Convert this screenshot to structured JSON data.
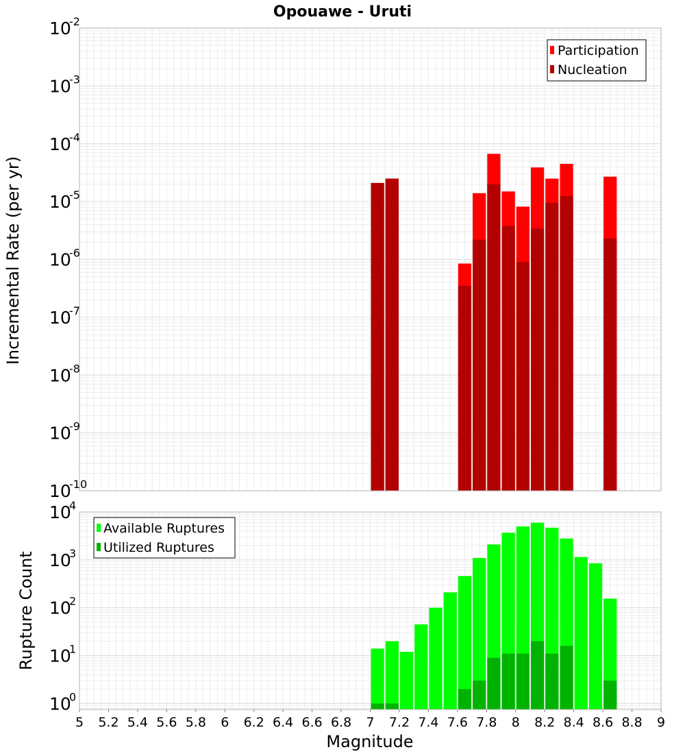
{
  "chart_data": [
    {
      "type": "bar",
      "title": "Opouawe - Uruti",
      "xlabel": "Magnitude",
      "ylabel": "Incremental Rate (per yr)",
      "yscale": "log",
      "ylim": [
        1e-10,
        0.01
      ],
      "xlim": [
        5,
        9
      ],
      "bin_width": 0.1,
      "y_ticks": [
        {
          "base": "10",
          "exp": "-10"
        },
        {
          "base": "10",
          "exp": "-9"
        },
        {
          "base": "10",
          "exp": "-8"
        },
        {
          "base": "10",
          "exp": "-7"
        },
        {
          "base": "10",
          "exp": "-6"
        },
        {
          "base": "10",
          "exp": "-5"
        },
        {
          "base": "10",
          "exp": "-4"
        },
        {
          "base": "10",
          "exp": "-3"
        },
        {
          "base": "10",
          "exp": "-2"
        }
      ],
      "legend": {
        "position": "top-right",
        "entries": [
          "Participation",
          "Nucleation"
        ]
      },
      "colors": {
        "Participation": "#ff0000",
        "Nucleation": "#b30000"
      },
      "series": [
        {
          "name": "Participation",
          "x": [
            7.05,
            7.15,
            7.65,
            7.75,
            7.85,
            7.95,
            8.05,
            8.15,
            8.25,
            8.35,
            8.65
          ],
          "values": [
            2.1e-05,
            2.5e-05,
            8.5e-07,
            1.4e-05,
            6.7e-05,
            1.5e-05,
            8.2e-06,
            3.9e-05,
            2.5e-05,
            4.5e-05,
            2.7e-05
          ]
        },
        {
          "name": "Nucleation",
          "x": [
            7.05,
            7.15,
            7.65,
            7.75,
            7.85,
            7.95,
            8.05,
            8.15,
            8.25,
            8.35,
            8.65
          ],
          "values": [
            2.1e-05,
            2.5e-05,
            3.5e-07,
            2.2e-06,
            2e-05,
            3.8e-06,
            9e-07,
            3.4e-06,
            9.5e-06,
            1.25e-05,
            2.3e-06
          ]
        }
      ]
    },
    {
      "type": "bar",
      "title": "",
      "xlabel": "Magnitude",
      "ylabel": "Rupture Count",
      "yscale": "log",
      "ylim": [
        0.75,
        10000
      ],
      "xlim": [
        5,
        9
      ],
      "bin_width": 0.1,
      "x_ticks": [
        "5",
        "5.2",
        "5.4",
        "5.6",
        "5.8",
        "6",
        "6.2",
        "6.4",
        "6.6",
        "6.8",
        "7",
        "7.2",
        "7.4",
        "7.6",
        "7.8",
        "8",
        "8.2",
        "8.4",
        "8.6",
        "8.8",
        "9"
      ],
      "y_ticks": [
        {
          "base": "10",
          "exp": "0"
        },
        {
          "base": "10",
          "exp": "1"
        },
        {
          "base": "10",
          "exp": "2"
        },
        {
          "base": "10",
          "exp": "3"
        },
        {
          "base": "10",
          "exp": "4"
        }
      ],
      "legend": {
        "position": "top-left",
        "entries": [
          "Available Ruptures",
          "Utilized Ruptures"
        ]
      },
      "colors": {
        "Available Ruptures": "#00ff00",
        "Utilized Ruptures": "#00b300"
      },
      "series": [
        {
          "name": "Available Ruptures",
          "x": [
            7.05,
            7.15,
            7.25,
            7.35,
            7.45,
            7.55,
            7.65,
            7.75,
            7.85,
            7.95,
            8.05,
            8.15,
            8.25,
            8.35,
            8.45,
            8.55,
            8.65
          ],
          "values": [
            14,
            20,
            12,
            45,
            100,
            210,
            460,
            1100,
            2100,
            3700,
            5000,
            6000,
            4700,
            2800,
            1150,
            850,
            155
          ]
        },
        {
          "name": "Utilized Ruptures",
          "x": [
            7.05,
            7.15,
            7.65,
            7.75,
            7.85,
            7.95,
            8.05,
            8.15,
            8.25,
            8.35,
            8.65
          ],
          "values": [
            1,
            1,
            2,
            3,
            9,
            11,
            11,
            20,
            11,
            16,
            3
          ]
        }
      ]
    }
  ]
}
